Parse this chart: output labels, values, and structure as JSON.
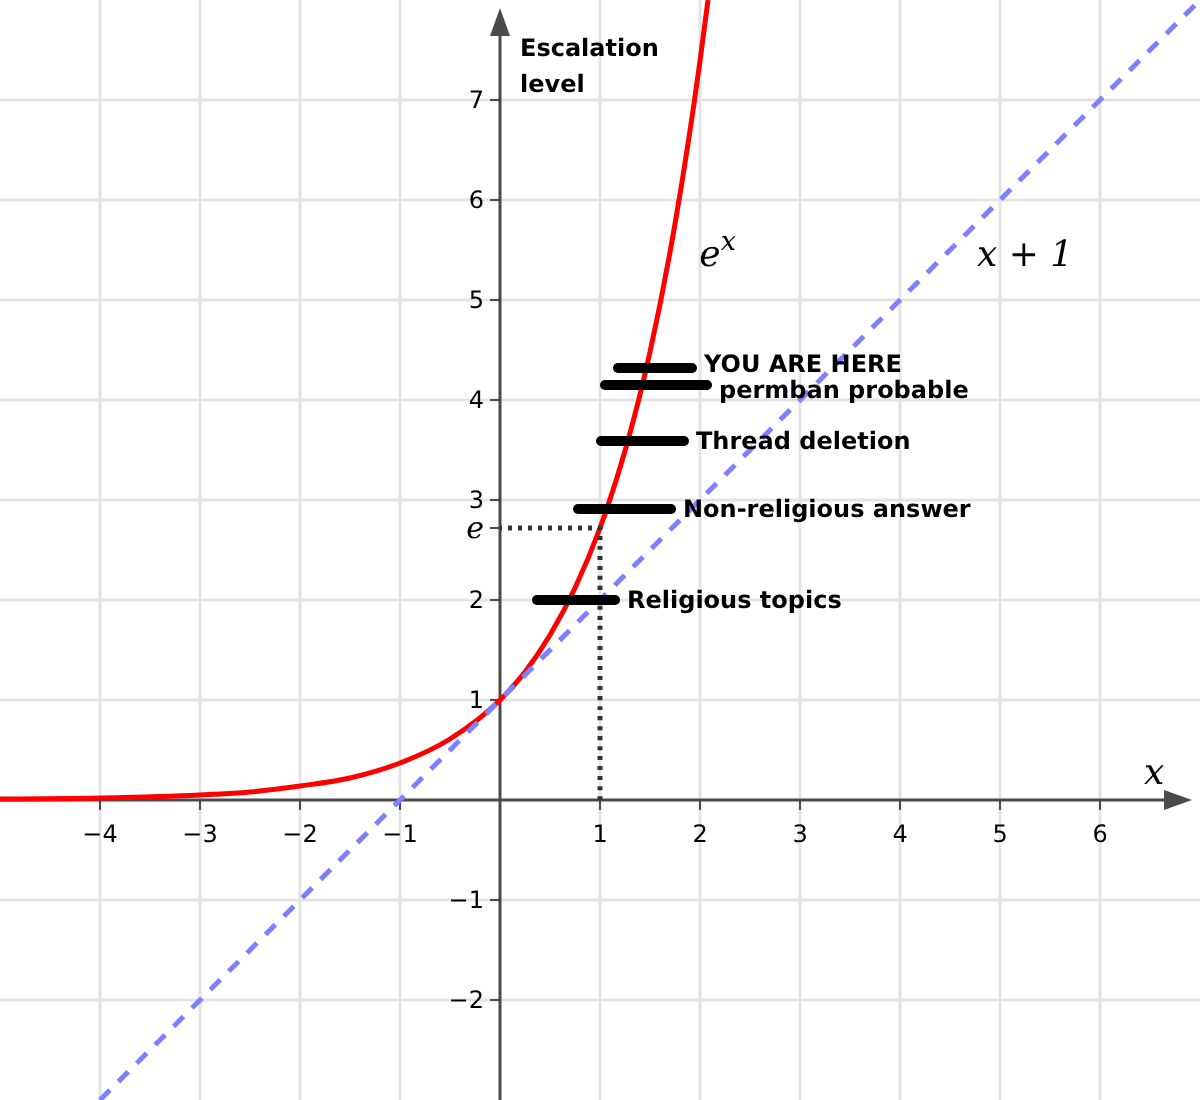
{
  "chart_data": {
    "type": "line",
    "xlabel": "x",
    "ylabel": "Escalation level",
    "xlim": [
      -5,
      7
    ],
    "ylim": [
      -3,
      8
    ],
    "xticks": [
      -4,
      -3,
      -2,
      -1,
      1,
      2,
      3,
      4,
      5,
      6
    ],
    "yticks": [
      -2,
      -1,
      1,
      2,
      {
        "value": 2.72,
        "label": "e"
      },
      3,
      4,
      5,
      6,
      7
    ],
    "grid": true,
    "series": [
      {
        "name": "e$^{x}$",
        "color": "#ff0000",
        "line_style": "solid",
        "x": [
          -5,
          -4,
          -3,
          -2.5,
          -2,
          -1.5,
          -1,
          -0.5,
          0,
          0.25,
          0.5,
          0.75,
          1,
          1.25,
          1.5,
          1.75,
          2,
          2.08
        ],
        "values": [
          0.01,
          0.02,
          0.05,
          0.08,
          0.14,
          0.22,
          0.37,
          0.61,
          1,
          1.28,
          1.65,
          2.12,
          2.72,
          3.49,
          4.48,
          5.76,
          7.39,
          8
        ]
      },
      {
        "name": "x + 1",
        "color": "#8080ff",
        "line_style": "dashed",
        "x": [
          -4,
          7
        ],
        "values": [
          -3,
          8
        ]
      },
      {
        "color": "#333333",
        "line_style": "dotted",
        "x": [
          1,
          1,
          0
        ],
        "values": [
          0,
          2.72,
          2.72
        ]
      },
      {
        "name": "Religious topics",
        "color": "#000000",
        "line_style": "solid",
        "x": [
          0.37,
          1.15
        ],
        "values": [
          2,
          2
        ]
      },
      {
        "name": "Non-religious answer",
        "color": "#000000",
        "line_style": "solid",
        "x": [
          0.78,
          1.71
        ],
        "values": [
          2.91,
          2.91
        ]
      },
      {
        "name": "Thread deletion",
        "color": "#000000",
        "line_style": "solid",
        "x": [
          1.01,
          1.84
        ],
        "values": [
          3.59,
          3.59
        ]
      },
      {
        "name": "permban probable",
        "color": "#000000",
        "line_style": "solid",
        "x": [
          1.05,
          2.07
        ],
        "values": [
          4.15,
          4.15
        ]
      },
      {
        "name": "YOU ARE HERE",
        "color": "#000000",
        "line_style": "solid",
        "x": [
          1.18,
          1.92
        ],
        "values": [
          4.32,
          4.32
        ]
      }
    ]
  }
}
